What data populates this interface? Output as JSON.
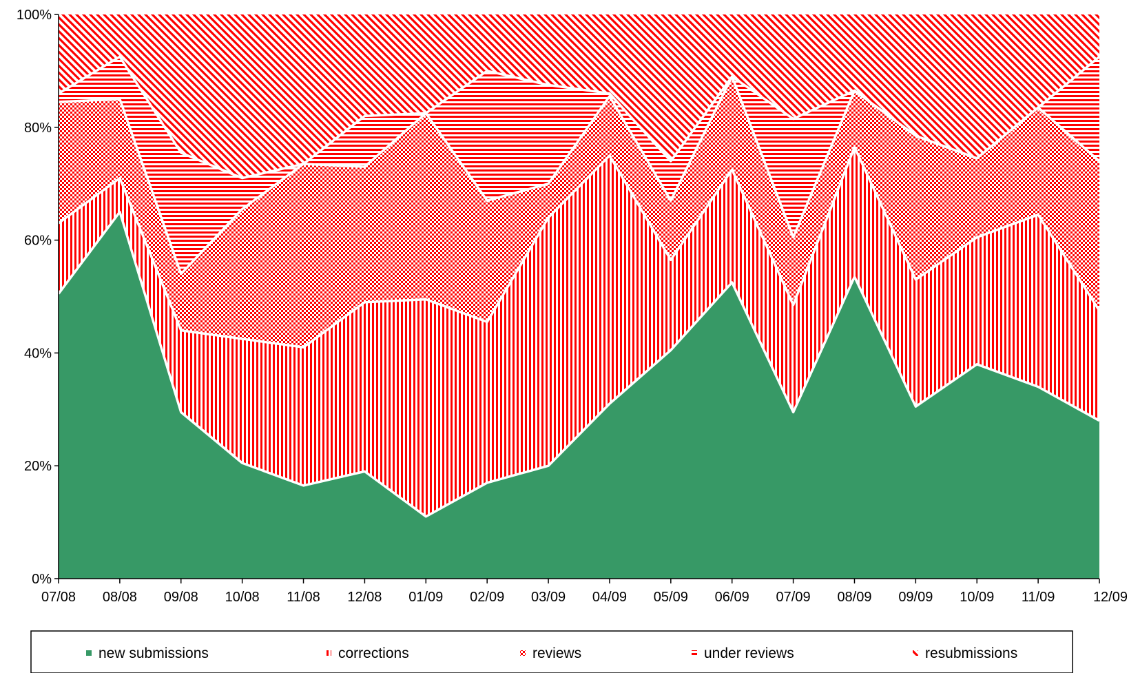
{
  "chart_data": {
    "type": "area",
    "stacked_percent": true,
    "categories": [
      "07/08",
      "08/08",
      "09/08",
      "10/08",
      "11/08",
      "12/08",
      "01/09",
      "02/09",
      "03/09",
      "04/09",
      "05/09",
      "06/09",
      "07/09",
      "08/09",
      "09/09",
      "10/09",
      "11/09",
      "12/09"
    ],
    "series": [
      {
        "name": "new submissions",
        "values": [
          50.5,
          65,
          29.5,
          20.5,
          16.5,
          19,
          11,
          17,
          20,
          31,
          40.5,
          52.5,
          29.5,
          53.5,
          30.5,
          38,
          34,
          28
        ]
      },
      {
        "name": "corrections",
        "values": [
          12.5,
          6,
          14.5,
          22,
          24.5,
          30,
          38.5,
          28.5,
          44,
          44,
          16,
          20,
          19,
          23,
          22.5,
          22.5,
          30.5,
          19.5
        ]
      },
      {
        "name": "reviews",
        "values": [
          21.5,
          14,
          10,
          23,
          32.5,
          24,
          33,
          21.5,
          6,
          10.5,
          10.5,
          16.5,
          12,
          10,
          25.5,
          14,
          19,
          26.5
        ]
      },
      {
        "name": "under reviews",
        "values": [
          1.5,
          7.5,
          21.5,
          5.5,
          0,
          9,
          0,
          23,
          17.5,
          0.5,
          7,
          0,
          21,
          0,
          0,
          0,
          0,
          18.5
        ]
      },
      {
        "name": "resubmissions",
        "values": [
          14,
          7.5,
          24.5,
          29,
          26.5,
          18,
          17.5,
          10,
          12.5,
          14,
          26,
          11,
          18.5,
          13.5,
          21.5,
          25.5,
          16.5,
          7.5
        ]
      }
    ],
    "yticks": [
      "0%",
      "20%",
      "40%",
      "60%",
      "80%",
      "100%"
    ],
    "ylim": [
      0,
      100
    ],
    "grid": false,
    "legend_position": "bottom",
    "colors": {
      "new submissions": "#379966",
      "hatch": "#ff0000",
      "background": "#ffffff",
      "separator": "#ffffff",
      "axis": "#000000"
    }
  },
  "legend": {
    "items": [
      {
        "label": "new submissions",
        "symbol": "■"
      },
      {
        "label": "corrections",
        "symbol": "ıı"
      },
      {
        "label": "reviews",
        "symbol": "⌐"
      },
      {
        "label": "under reviews",
        "symbol": "="
      },
      {
        "label": "resubmissions",
        "symbol": "⌐"
      }
    ]
  }
}
